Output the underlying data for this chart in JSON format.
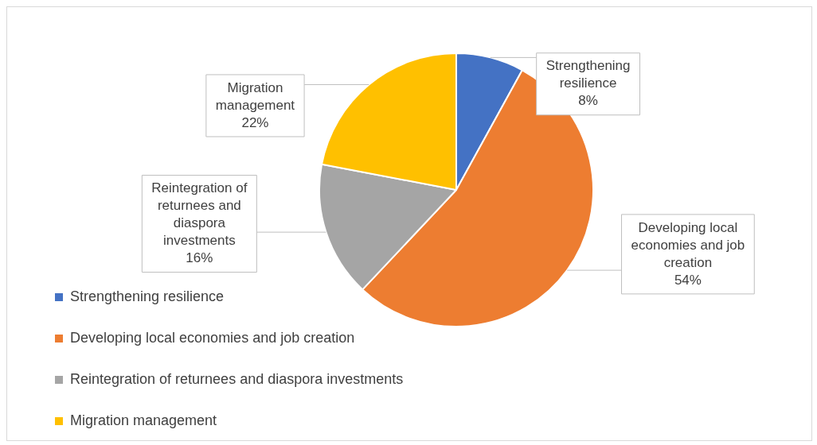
{
  "chart_data": {
    "type": "pie",
    "categories": [
      "Strengthening resilience",
      "Developing local economies and job creation",
      "Reintegration of returnees and diaspora investments",
      "Migration management"
    ],
    "values": [
      8,
      54,
      16,
      22
    ],
    "value_labels": [
      "8%",
      "54%",
      "16%",
      "22%"
    ],
    "colors": [
      "#4472c4",
      "#ed7d31",
      "#a5a5a5",
      "#ffc000"
    ],
    "legend": "bottom left"
  }
}
